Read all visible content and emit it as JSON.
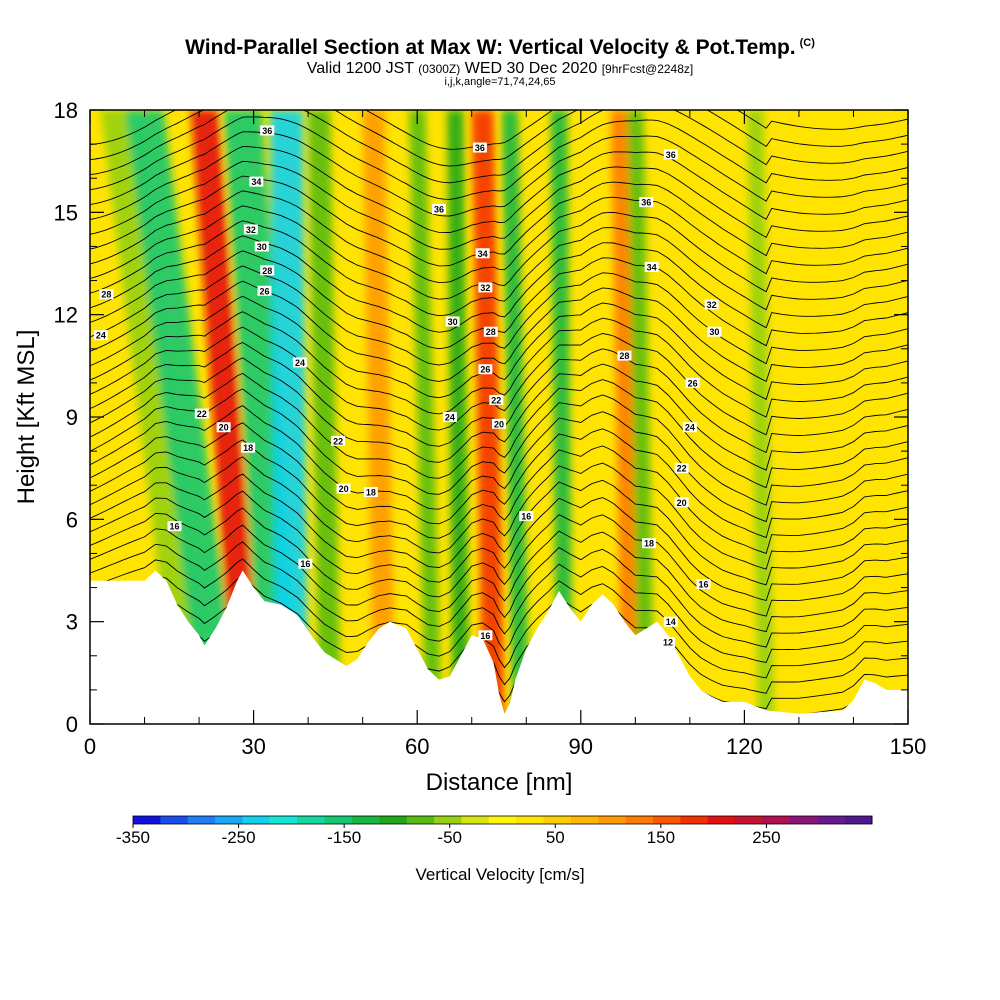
{
  "header": {
    "title": "Wind-Parallel Section at Max W: Vertical Velocity & Pot.Temp.",
    "copyright": "(C)",
    "valid_prefix": "Valid 1200 JST",
    "valid_utc": "(0300Z)",
    "valid_date": "WED 30 Dec 2020",
    "forecast": "[9hrFcst@2248z]",
    "grid_info": "i,j,k,angle=71,74,24,65"
  },
  "chart_data": {
    "type": "heatmap",
    "xlabel": "Distance [nm]",
    "ylabel": "Height [Kft MSL]",
    "xlim": [
      0,
      150
    ],
    "ylim": [
      0,
      18
    ],
    "x_ticks": [
      0,
      30,
      60,
      90,
      120,
      150
    ],
    "y_ticks": [
      0,
      3,
      6,
      9,
      12,
      15,
      18
    ],
    "grid": false,
    "colorbar": {
      "label": "Vertical Velocity [cm/s]",
      "tick_labels": [
        "-350",
        "-250",
        "-150",
        "-50",
        "50",
        "150",
        "250"
      ],
      "tick_values": [
        -350,
        -250,
        -150,
        -50,
        50,
        150,
        250
      ],
      "range": [
        -350,
        350
      ],
      "colors": [
        "#1010e0",
        "#1a4cf0",
        "#1c7df5",
        "#16a8f5",
        "#10d2f0",
        "#10e8d8",
        "#12d8a0",
        "#14c870",
        "#18b840",
        "#1ea818",
        "#58bc10",
        "#96d010",
        "#d6e60a",
        "#fff50a",
        "#ffe400",
        "#ffce00",
        "#ffb600",
        "#ff9a00",
        "#ff7a00",
        "#ff5800",
        "#f43000",
        "#e41010",
        "#c81030",
        "#b01050",
        "#8c1478",
        "#6a1890",
        "#501890"
      ]
    },
    "terrain_kft": [
      [
        0,
        4.2
      ],
      [
        10,
        4.2
      ],
      [
        12,
        4.5
      ],
      [
        14,
        4.2
      ],
      [
        16,
        3.5
      ],
      [
        18,
        3.0
      ],
      [
        20,
        2.6
      ],
      [
        21,
        2.3
      ],
      [
        23,
        2.8
      ],
      [
        25,
        3.4
      ],
      [
        27,
        4.2
      ],
      [
        28,
        4.5
      ],
      [
        30,
        4.0
      ],
      [
        32,
        3.6
      ],
      [
        35,
        3.5
      ],
      [
        38,
        3.2
      ],
      [
        41,
        2.5
      ],
      [
        43,
        2.1
      ],
      [
        45,
        1.9
      ],
      [
        47,
        1.7
      ],
      [
        49,
        1.9
      ],
      [
        51,
        2.4
      ],
      [
        53,
        2.8
      ],
      [
        55,
        3.0
      ],
      [
        58,
        2.8
      ],
      [
        60,
        2.2
      ],
      [
        62,
        1.6
      ],
      [
        64,
        1.3
      ],
      [
        66,
        1.4
      ],
      [
        68,
        2.0
      ],
      [
        70,
        2.6
      ],
      [
        72,
        2.5
      ],
      [
        74,
        1.8
      ],
      [
        75,
        0.9
      ],
      [
        76,
        0.3
      ],
      [
        77,
        0.6
      ],
      [
        78,
        1.3
      ],
      [
        80,
        2.2
      ],
      [
        82,
        2.8
      ],
      [
        84,
        3.3
      ],
      [
        86,
        3.9
      ],
      [
        88,
        3.4
      ],
      [
        90,
        3.0
      ],
      [
        92,
        3.5
      ],
      [
        94,
        3.8
      ],
      [
        96,
        3.5
      ],
      [
        98,
        3.0
      ],
      [
        100,
        2.6
      ],
      [
        102,
        2.8
      ],
      [
        104,
        3.0
      ],
      [
        106,
        2.6
      ],
      [
        108,
        2.0
      ],
      [
        110,
        1.4
      ],
      [
        112,
        1.0
      ],
      [
        114,
        0.8
      ],
      [
        116,
        0.65
      ],
      [
        120,
        0.65
      ],
      [
        124,
        0.4
      ],
      [
        130,
        0.3
      ],
      [
        138,
        0.4
      ],
      [
        140,
        0.7
      ],
      [
        142,
        1.3
      ],
      [
        144,
        1.2
      ],
      [
        146,
        1.0
      ],
      [
        150,
        1.0
      ]
    ],
    "velocity_bands": [
      {
        "x_bottom": 19,
        "x_top": 5,
        "width": 6,
        "value": -60
      },
      {
        "x_bottom": 24,
        "x_top": 10,
        "width": 7,
        "value": -150
      },
      {
        "x_bottom": 29,
        "x_top": 21,
        "width": 5,
        "value": 200
      },
      {
        "x_bottom": 35,
        "x_top": 28,
        "width": 7,
        "value": -150
      },
      {
        "x_bottom": 37,
        "x_top": 36,
        "width": 6,
        "value": -230
      },
      {
        "x_bottom": 44,
        "x_top": 42,
        "width": 4,
        "value": -90
      },
      {
        "x_bottom": 54,
        "x_top": 52,
        "width": 4,
        "value": 110
      },
      {
        "x_bottom": 63,
        "x_top": 60,
        "width": 3,
        "value": -80
      },
      {
        "x_bottom": 68,
        "x_top": 67,
        "width": 3,
        "value": -100
      },
      {
        "x_bottom": 74,
        "x_top": 72,
        "width": 4,
        "value": 190
      },
      {
        "x_bottom": 79,
        "x_top": 77,
        "width": 3,
        "value": -140
      },
      {
        "x_bottom": 87,
        "x_top": 86,
        "width": 3,
        "value": -120
      },
      {
        "x_bottom": 99,
        "x_top": 97,
        "width": 3,
        "value": 140
      },
      {
        "x_bottom": 102,
        "x_top": 100,
        "width": 3,
        "value": -80
      },
      {
        "x_bottom": 124,
        "x_top": 122,
        "width": 3,
        "value": -60
      }
    ],
    "contour_labels": [
      {
        "text": "36",
        "x": 32.5,
        "y": 17.4
      },
      {
        "text": "36",
        "x": 71.5,
        "y": 16.9
      },
      {
        "text": "36",
        "x": 106.5,
        "y": 16.7
      },
      {
        "text": "34",
        "x": 30.5,
        "y": 15.9
      },
      {
        "text": "36",
        "x": 64,
        "y": 15.1
      },
      {
        "text": "36",
        "x": 102,
        "y": 15.3
      },
      {
        "text": "32",
        "x": 29.5,
        "y": 14.5
      },
      {
        "text": "30",
        "x": 31.5,
        "y": 14.0
      },
      {
        "text": "34",
        "x": 72,
        "y": 13.8
      },
      {
        "text": "34",
        "x": 103,
        "y": 13.4
      },
      {
        "text": "28",
        "x": 32.5,
        "y": 13.3
      },
      {
        "text": "32",
        "x": 72.5,
        "y": 12.8
      },
      {
        "text": "26",
        "x": 32,
        "y": 12.7
      },
      {
        "text": "28",
        "x": 3,
        "y": 12.6
      },
      {
        "text": "32",
        "x": 114,
        "y": 12.3
      },
      {
        "text": "30",
        "x": 66.5,
        "y": 11.8
      },
      {
        "text": "28",
        "x": 73.5,
        "y": 11.5
      },
      {
        "text": "30",
        "x": 114.5,
        "y": 11.5
      },
      {
        "text": "24",
        "x": 2,
        "y": 11.4
      },
      {
        "text": "28",
        "x": 98,
        "y": 10.8
      },
      {
        "text": "24",
        "x": 38.5,
        "y": 10.6
      },
      {
        "text": "26",
        "x": 72.5,
        "y": 10.4
      },
      {
        "text": "26",
        "x": 110.5,
        "y": 10.0
      },
      {
        "text": "22",
        "x": 74.5,
        "y": 9.5
      },
      {
        "text": "22",
        "x": 20.5,
        "y": 9.1
      },
      {
        "text": "24",
        "x": 66,
        "y": 9.0
      },
      {
        "text": "20",
        "x": 75,
        "y": 8.8
      },
      {
        "text": "20",
        "x": 24.5,
        "y": 8.7
      },
      {
        "text": "24",
        "x": 110,
        "y": 8.7
      },
      {
        "text": "22",
        "x": 45.5,
        "y": 8.3
      },
      {
        "text": "18",
        "x": 29,
        "y": 8.1
      },
      {
        "text": "22",
        "x": 108.5,
        "y": 7.5
      },
      {
        "text": "20",
        "x": 46.5,
        "y": 6.9
      },
      {
        "text": "18",
        "x": 51.5,
        "y": 6.8
      },
      {
        "text": "20",
        "x": 108.5,
        "y": 6.5
      },
      {
        "text": "16",
        "x": 15.5,
        "y": 5.8
      },
      {
        "text": "16",
        "x": 80,
        "y": 6.1
      },
      {
        "text": "18",
        "x": 102.5,
        "y": 5.3
      },
      {
        "text": "16",
        "x": 39.5,
        "y": 4.7
      },
      {
        "text": "16",
        "x": 112.5,
        "y": 4.1
      },
      {
        "text": "14",
        "x": 106.5,
        "y": 3.0
      },
      {
        "text": "16",
        "x": 72.5,
        "y": 2.6
      },
      {
        "text": "12",
        "x": 106,
        "y": 2.4
      }
    ]
  }
}
